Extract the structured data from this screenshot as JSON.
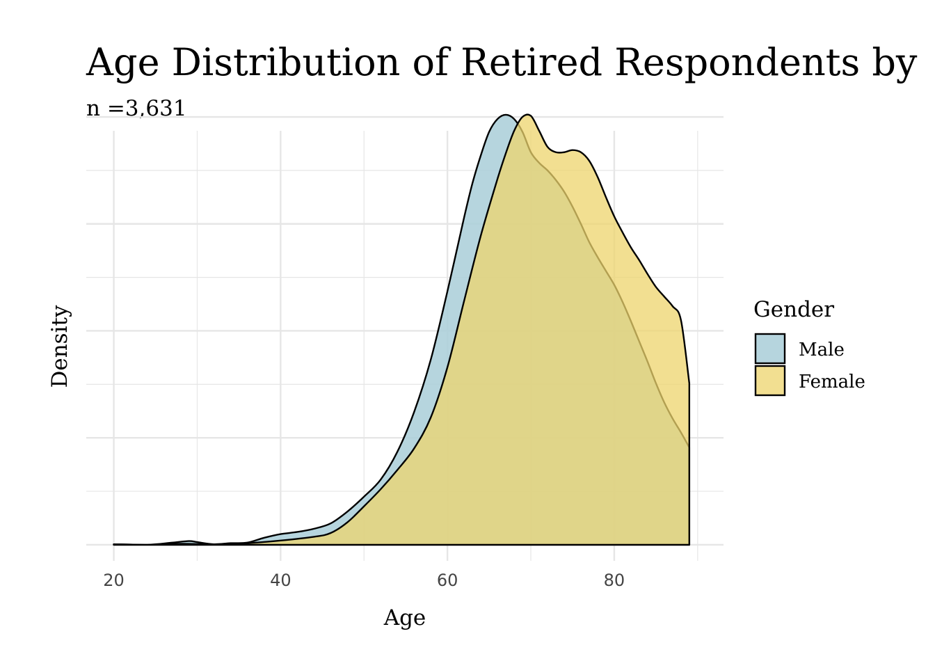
{
  "chart_data": {
    "type": "area",
    "title": "Age Distribution of Retired Respondents by",
    "subtitle": "n =3,631",
    "xlabel": "Age",
    "ylabel": "Density",
    "xlim": [
      16.7,
      93.1
    ],
    "ylim": [
      -0.0015,
      0.0387
    ],
    "x_ticks": [
      20,
      40,
      60,
      80
    ],
    "x_tick_labels": [
      "20",
      "40",
      "60",
      "80"
    ],
    "y_gridlines": [
      0,
      0.005,
      0.01,
      0.015,
      0.02,
      0.025,
      0.03,
      0.035,
      0.04
    ],
    "grid": true,
    "legend": {
      "title": "Gender",
      "position": "right",
      "entries": [
        "Male",
        "Female"
      ]
    },
    "series": [
      {
        "name": "Male",
        "color": "#A9CED8",
        "opacity": 0.85,
        "x": [
          20,
          24,
          27,
          29,
          30,
          32,
          34,
          36,
          38,
          40,
          42,
          44,
          46,
          48,
          50,
          52,
          54,
          56,
          58,
          60,
          62,
          63,
          64,
          65,
          66,
          67,
          68,
          69,
          70,
          71,
          72,
          73,
          74,
          75,
          76,
          77,
          78,
          79,
          80,
          81,
          82,
          83,
          84,
          85,
          86,
          87,
          88,
          89
        ],
        "y": [
          5e-05,
          0.0,
          0.0002,
          0.00035,
          0.00025,
          5e-05,
          0.00015,
          0.0002,
          0.00065,
          0.001,
          0.0012,
          0.0015,
          0.002,
          0.0031,
          0.0045,
          0.0061,
          0.0087,
          0.0124,
          0.0173,
          0.0237,
          0.0306,
          0.0338,
          0.0364,
          0.0386,
          0.0398,
          0.0402,
          0.0398,
          0.0386,
          0.0367,
          0.0357,
          0.035,
          0.0341,
          0.033,
          0.0316,
          0.03,
          0.0283,
          0.0269,
          0.0256,
          0.0243,
          0.0227,
          0.0209,
          0.019,
          0.0171,
          0.0151,
          0.0133,
          0.0118,
          0.0105,
          0.0091
        ]
      },
      {
        "name": "Female",
        "color": "#EDD46C",
        "opacity": 0.75,
        "x": [
          20,
          24,
          28,
          32,
          36,
          40,
          44,
          46,
          48,
          50,
          52,
          54,
          56,
          58,
          60,
          62,
          64,
          66,
          67,
          68,
          69,
          70,
          71,
          72,
          73,
          74,
          75,
          76,
          77,
          78,
          79,
          80,
          81,
          82,
          83,
          84,
          85,
          86,
          87,
          88,
          89
        ],
        "y": [
          5e-05,
          0.0,
          0.0001,
          5e-05,
          0.00015,
          0.0004,
          0.00075,
          0.0011,
          0.0021,
          0.0036,
          0.0052,
          0.007,
          0.009,
          0.0119,
          0.0166,
          0.0228,
          0.0289,
          0.0342,
          0.0366,
          0.0387,
          0.04,
          0.0401,
          0.0387,
          0.0372,
          0.0367,
          0.0367,
          0.0369,
          0.0367,
          0.0359,
          0.0344,
          0.0325,
          0.0307,
          0.0292,
          0.0278,
          0.0266,
          0.0253,
          0.0241,
          0.0232,
          0.0223,
          0.021,
          0.0151
        ]
      }
    ]
  }
}
